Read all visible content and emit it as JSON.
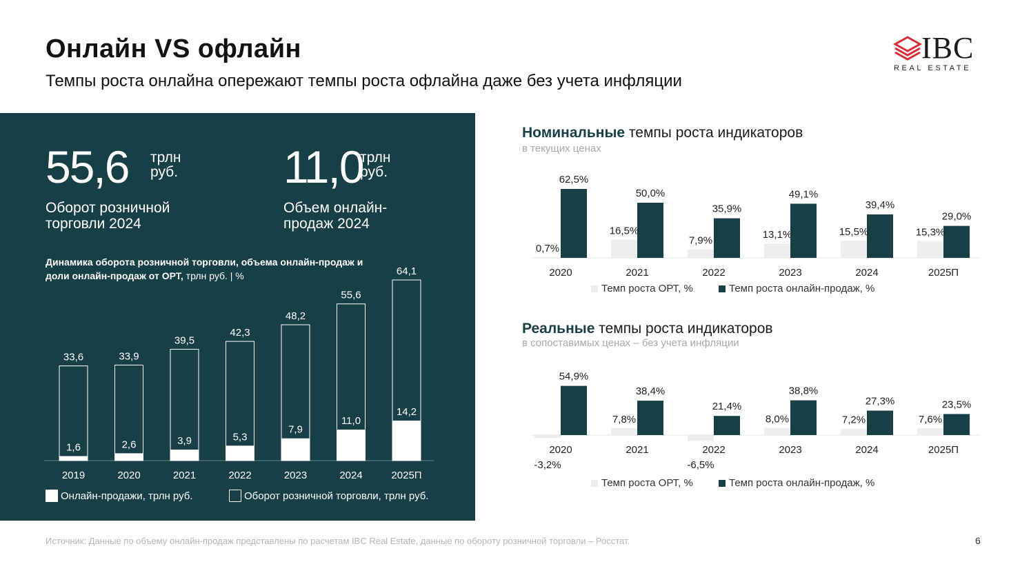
{
  "header": {
    "title": "Онлайн VS офлайн",
    "subtitle": "Темпы роста онлайна опережают темпы роста офлайна даже без учета инфляции"
  },
  "logo": {
    "name": "IBC",
    "sub": "REAL ESTATE",
    "color": "#d62e34"
  },
  "kpis": [
    {
      "value": "55,6",
      "unit_line1": "трлн",
      "unit_line2": "руб.",
      "label_line1": "Оборот розничной",
      "label_line2": "торговли 2024"
    },
    {
      "value": "11,0",
      "unit_line1": "трлн",
      "unit_line2": "руб.",
      "label_line1": "Объем онлайн-",
      "label_line2": "продаж 2024"
    }
  ],
  "left_chart": {
    "title_bold": "Динамика оборота розничной торговли, объема онлайн-продаж и доли онлайн-продаж от ОРТ,",
    "title_unit": " трлн руб. | %",
    "legend_online": "Онлайн-продажи, трлн руб.",
    "legend_retail": "Оборот розничной торговли, трлн руб."
  },
  "nominal": {
    "title_bold": "Номинальные",
    "title_rest": " темпы роста индикаторов",
    "subtitle": "в текущих ценах",
    "legend_ort": "Темп роста ОРТ, %",
    "legend_online": "Темп роста онлайн-продаж, %"
  },
  "real": {
    "title_bold": "Реальные",
    "title_rest": " темпы роста индикаторов",
    "subtitle": "в сопоставимых ценах – без учета инфляции",
    "legend_ort": "Темп роста ОРТ, %",
    "legend_online": "Темп роста онлайн-продаж, %"
  },
  "footer": {
    "source": "Источник: Данные по объему онлайн-продаж представлены по расчетам IBC Real Estate, данные по обороту розничной торговли – Росстат.",
    "page": "6"
  },
  "colors": {
    "panel": "#173f46",
    "dark_bar": "#173f46",
    "light_bar": "#eeeeee",
    "white": "#ffffff"
  },
  "chart_data": [
    {
      "type": "bar",
      "categories": [
        "2019",
        "2020",
        "2021",
        "2022",
        "2023",
        "2024",
        "2025П"
      ],
      "series": [
        {
          "name": "Оборот розничной торговли, трлн руб.",
          "values": [
            33.6,
            33.9,
            39.5,
            42.3,
            48.2,
            55.6,
            64.1
          ],
          "labels": [
            "33,6",
            "33,9",
            "39,5",
            "42,3",
            "48,2",
            "55,6",
            "64,1"
          ]
        },
        {
          "name": "Онлайн-продажи, трлн руб.",
          "values": [
            1.6,
            2.6,
            3.9,
            5.3,
            7.9,
            11.0,
            14.2
          ],
          "labels": [
            "1,6",
            "2,6",
            "3,9",
            "5,3",
            "7,9",
            "11,0",
            "14,2"
          ]
        }
      ],
      "overlay": true,
      "ylim": [
        0,
        64.1
      ],
      "legend": "bottom"
    },
    {
      "type": "bar",
      "categories": [
        "2020",
        "2021",
        "2022",
        "2023",
        "2024",
        "2025П"
      ],
      "series": [
        {
          "name": "Темп роста ОРТ, %",
          "values": [
            0.7,
            16.5,
            7.9,
            13.1,
            15.5,
            15.3
          ],
          "labels": [
            "0,7%",
            "16,5%",
            "7,9%",
            "13,1%",
            "15,5%",
            "15,3%"
          ]
        },
        {
          "name": "Темп роста онлайн-продаж, %",
          "values": [
            62.5,
            50.0,
            35.9,
            49.1,
            39.4,
            29.0
          ],
          "labels": [
            "62,5%",
            "50,0%",
            "35,9%",
            "49,1%",
            "39,4%",
            "29,0%"
          ]
        }
      ],
      "ylim": [
        0,
        62.5
      ],
      "legend": "bottom"
    },
    {
      "type": "bar",
      "categories": [
        "2020",
        "2021",
        "2022",
        "2023",
        "2024",
        "2025П"
      ],
      "series": [
        {
          "name": "Темп роста ОРТ, %",
          "values": [
            -3.2,
            7.8,
            -6.5,
            8.0,
            7.2,
            7.6
          ],
          "labels": [
            "-3,2%",
            "7,8%",
            "-6,5%",
            "8,0%",
            "7,2%",
            "7,6%"
          ]
        },
        {
          "name": "Темп роста онлайн-продаж, %",
          "values": [
            54.9,
            38.4,
            21.4,
            38.8,
            27.3,
            23.5
          ],
          "labels": [
            "54,9%",
            "38,4%",
            "21,4%",
            "38,8%",
            "27,3%",
            "23,5%"
          ]
        }
      ],
      "ylim": [
        -6.5,
        54.9
      ],
      "legend": "bottom"
    }
  ]
}
